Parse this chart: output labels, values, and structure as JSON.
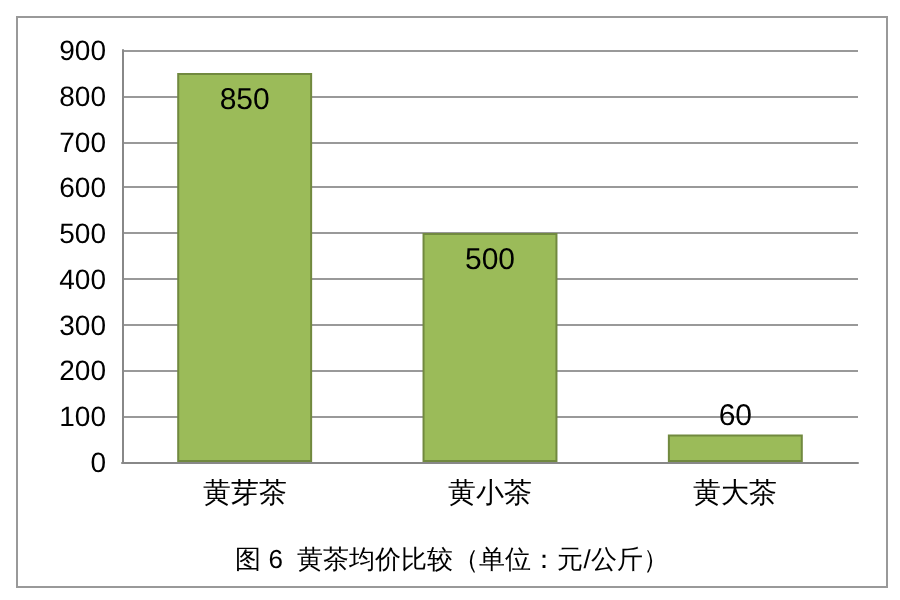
{
  "chart_data": {
    "type": "bar",
    "title": "图 6  黄茶均价比较（单位：元/公斤）",
    "categories": [
      "黄芽茶",
      "黄小茶",
      "黄大茶"
    ],
    "values": [
      850,
      500,
      60
    ],
    "color": "#9bbb59",
    "ylim": [
      0,
      900
    ],
    "yticks": [
      0,
      100,
      200,
      300,
      400,
      500,
      600,
      700,
      800,
      900
    ],
    "grid": "y",
    "data_labels": true
  }
}
